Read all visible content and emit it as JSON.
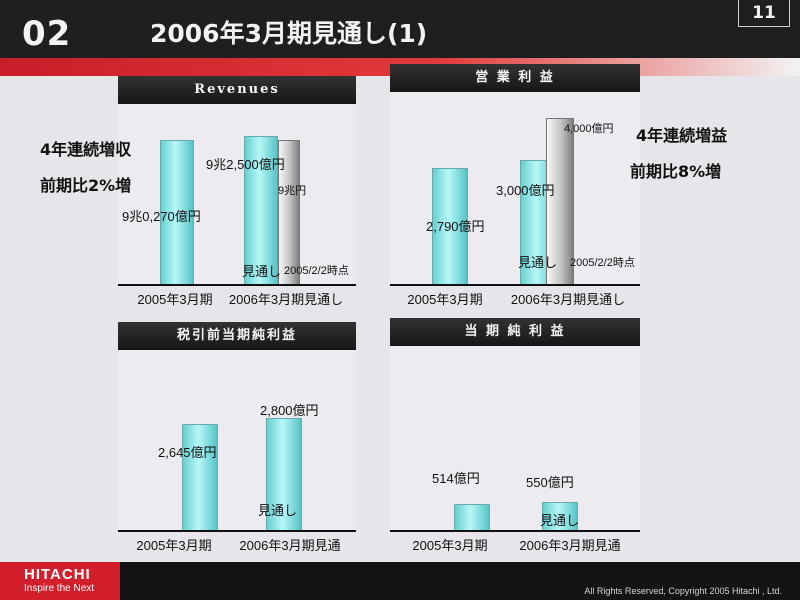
{
  "header": {
    "section_number": "02",
    "title": "2006年3月期見通し(1)",
    "page_number": "11"
  },
  "footer": {
    "logo_main": "HITACHI",
    "logo_sub": "Inspire the Next",
    "copyright": "All Rights Reserved, Copyright 2005 Hitachi , Ltd."
  },
  "colors": {
    "brand_red": "#d21f2b",
    "bar_cyan": "#68cfd0",
    "bar_gray": "#c3c3c3",
    "title_bar": "#1b1b1b"
  },
  "panels": {
    "revenues": {
      "title": "Revenues",
      "callout_line1": "4年連続増収",
      "callout_line2": "前期比2%増",
      "bar_labels": [
        "9兆0,270億円",
        "9兆2,500億円",
        "9兆円"
      ],
      "inbar_note": "見通し",
      "gray_note": "2005/2/2時点"
    },
    "operating": {
      "title": "営 業 利 益",
      "callout_line1": "4年連続増益",
      "callout_line2": "前期比8%増",
      "bar_labels": [
        "2,790億円",
        "3,000億円",
        "4,000億円"
      ],
      "inbar_note": "見通し",
      "gray_note": "2005/2/2時点"
    },
    "pretax": {
      "title": "税引前当期純利益",
      "bar_labels": [
        "2,645億円",
        "2,800億円"
      ],
      "inbar_note": "見通し"
    },
    "net": {
      "title": "当 期 純 利 益",
      "bar_labels": [
        "514億円",
        "550億円"
      ],
      "inbar_note": "見通し"
    }
  },
  "chart_data": [
    {
      "type": "bar",
      "title": "Revenues",
      "categories": [
        "2005年3月期",
        "2006年3月期見通し"
      ],
      "series": [
        {
          "values": [
            90270,
            92500
          ]
        },
        {
          "values": [
            null,
            90000
          ]
        }
      ],
      "data_labels": [
        "9兆0,270億円",
        "9兆2,500億円",
        "9兆円"
      ],
      "annotations": [
        "見通し",
        "2005/2/2時点"
      ]
    },
    {
      "type": "bar",
      "title": "営 業 利 益",
      "categories": [
        "2005年3月期",
        "2006年3月期見通し"
      ],
      "series": [
        {
          "values": [
            2790,
            3000
          ]
        },
        {
          "values": [
            null,
            4000
          ]
        }
      ],
      "data_labels": [
        "2,790億円",
        "3,000億円",
        "4,000億円"
      ],
      "annotations": [
        "見通し",
        "2005/2/2時点"
      ]
    },
    {
      "type": "bar",
      "title": "税引前当期純利益",
      "categories": [
        "2005年3月期",
        "2006年3月期見通"
      ],
      "series": [
        {
          "values": [
            2645,
            2800
          ]
        }
      ],
      "data_labels": [
        "2,645億円",
        "2,800億円"
      ],
      "annotations": [
        "見通し"
      ]
    },
    {
      "type": "bar",
      "title": "当 期 純 利 益",
      "categories": [
        "2005年3月期",
        "2006年3月期見通"
      ],
      "series": [
        {
          "values": [
            514,
            550
          ]
        }
      ],
      "data_labels": [
        "514億円",
        "550億円"
      ],
      "annotations": [
        "見通し"
      ]
    }
  ]
}
